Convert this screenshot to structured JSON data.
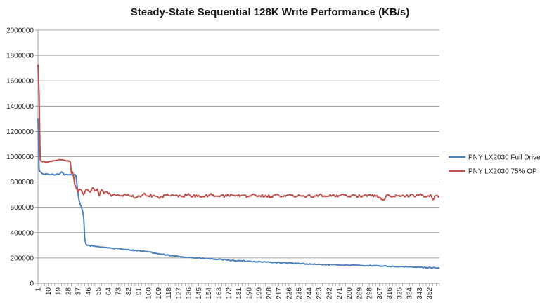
{
  "chart_data": {
    "type": "line",
    "title": "Steady-State Sequential 128K Write Performance (KB/s)",
    "xlabel": "",
    "ylabel": "",
    "ylim": [
      0,
      2000000
    ],
    "yticks": [
      0,
      200000,
      400000,
      600000,
      800000,
      1000000,
      1200000,
      1400000,
      1600000,
      1800000,
      2000000
    ],
    "xlim": [
      1,
      361
    ],
    "xticks": [
      1,
      10,
      19,
      28,
      37,
      46,
      55,
      64,
      73,
      82,
      91,
      100,
      109,
      118,
      127,
      136,
      145,
      154,
      163,
      172,
      181,
      190,
      199,
      208,
      217,
      226,
      235,
      244,
      253,
      262,
      271,
      280,
      289,
      298,
      307,
      316,
      325,
      334,
      343,
      352
    ],
    "grid": true,
    "legend": "right",
    "series": [
      {
        "name": "PNY LX2030 Full Drive",
        "color": "#4f81bd",
        "x": [
          1,
          2,
          3,
          5,
          10,
          15,
          20,
          22,
          25,
          30,
          33,
          34,
          35,
          36,
          37,
          38,
          39,
          40,
          41,
          42,
          43,
          44,
          45,
          50,
          60,
          70,
          80,
          90,
          100,
          110,
          120,
          130,
          140,
          150,
          160,
          170,
          180,
          190,
          200,
          210,
          220,
          230,
          240,
          250,
          260,
          270,
          280,
          290,
          300,
          310,
          320,
          330,
          340,
          350,
          355,
          361
        ],
        "y": [
          1300000,
          900000,
          880000,
          865000,
          862000,
          858000,
          860000,
          880000,
          855000,
          858000,
          855000,
          860000,
          850000,
          780000,
          700000,
          650000,
          620000,
          600000,
          570000,
          520000,
          350000,
          310000,
          300000,
          295000,
          285000,
          275000,
          268000,
          258000,
          248000,
          232000,
          218000,
          210000,
          202000,
          196000,
          190000,
          184000,
          178000,
          174000,
          170000,
          166000,
          162000,
          158000,
          154000,
          150000,
          147000,
          145000,
          143000,
          141000,
          139000,
          136000,
          133000,
          130000,
          128000,
          125000,
          123000,
          122000
        ]
      },
      {
        "name": "PNY LX2030 75% OP",
        "color": "#c0504d",
        "x": [
          1,
          2,
          3,
          4,
          6,
          10,
          14,
          18,
          22,
          25,
          28,
          30,
          31,
          32,
          33,
          34,
          35,
          36,
          37,
          38,
          40,
          42,
          44,
          46,
          48,
          50,
          52,
          54,
          56,
          58,
          60,
          62,
          64,
          66,
          68,
          70,
          75,
          80,
          85,
          90,
          95,
          100,
          105,
          110,
          115,
          120,
          125,
          130,
          135,
          140,
          145,
          150,
          155,
          160,
          165,
          170,
          175,
          180,
          185,
          190,
          195,
          200,
          205,
          210,
          215,
          220,
          225,
          230,
          235,
          240,
          245,
          250,
          255,
          260,
          265,
          270,
          275,
          280,
          285,
          290,
          295,
          300,
          305,
          310,
          315,
          320,
          325,
          330,
          335,
          340,
          345,
          350,
          353,
          355,
          357,
          359,
          361
        ],
        "y": [
          1730000,
          1500000,
          980000,
          965000,
          962000,
          958000,
          968000,
          972000,
          975000,
          972000,
          968000,
          960000,
          870000,
          880000,
          840000,
          780000,
          760000,
          740000,
          720000,
          745000,
          735000,
          700000,
          740000,
          735000,
          720000,
          755000,
          730000,
          745000,
          690000,
          740000,
          710000,
          725000,
          705000,
          700000,
          695000,
          700000,
          690000,
          695000,
          685000,
          680000,
          700000,
          690000,
          695000,
          670000,
          700000,
          690000,
          698000,
          685000,
          700000,
          688000,
          695000,
          682000,
          700000,
          690000,
          694000,
          688000,
          700000,
          690000,
          696000,
          685000,
          700000,
          690000,
          695000,
          683000,
          700000,
          688000,
          697000,
          690000,
          700000,
          685000,
          694000,
          690000,
          700000,
          688000,
          695000,
          684000,
          700000,
          690000,
          696000,
          687000,
          700000,
          690000,
          694000,
          660000,
          700000,
          688000,
          695000,
          683000,
          700000,
          690000,
          697000,
          686000,
          700000,
          660000,
          690000,
          695000,
          680000
        ]
      }
    ]
  }
}
